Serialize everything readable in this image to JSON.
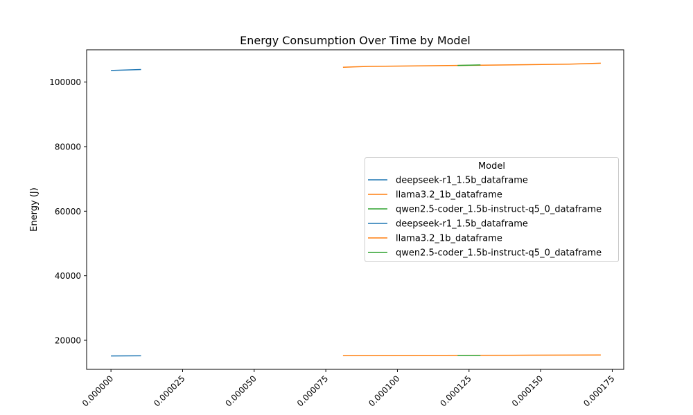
{
  "chart_data": {
    "type": "line",
    "title": "Energy Consumption Over Time by Model",
    "xlabel": "",
    "ylabel": "Energy (J)",
    "xlim": [
      -8.5e-06,
      0.000179
    ],
    "ylim": [
      11000,
      110000
    ],
    "x_ticks": [
      0.0,
      2.5e-05,
      5e-05,
      7.5e-05,
      0.0001,
      0.000125,
      0.00015,
      0.000175
    ],
    "x_tick_labels": [
      "0.000000",
      "0.000025",
      "0.000050",
      "0.000075",
      "0.000100",
      "0.000125",
      "0.000150",
      "0.000175"
    ],
    "y_ticks": [
      20000,
      40000,
      60000,
      80000,
      100000
    ],
    "y_tick_labels": [
      "20000",
      "40000",
      "60000",
      "80000",
      "100000"
    ],
    "grid": false,
    "legend": {
      "title": "Model",
      "position": "center-right"
    },
    "series": [
      {
        "name": "deepseek-r1_1.5b_dataframe",
        "color": "#1f77b4",
        "x": [
          0.0,
          1.05e-05
        ],
        "y": [
          103600,
          103900
        ]
      },
      {
        "name": "llama3.2_1b_dataframe",
        "color": "#ff7f0e",
        "x": [
          8.1e-05,
          9e-05,
          0.00011,
          0.00013,
          0.00016,
          0.000171
        ],
        "y": [
          104600,
          104850,
          105050,
          105250,
          105550,
          105850
        ]
      },
      {
        "name": "qwen2.5-coder_1.5b-instruct-q5_0_dataframe",
        "color": "#2ca02c",
        "x": [
          0.000121,
          0.000129
        ],
        "y": [
          105150,
          105300
        ]
      },
      {
        "name": "deepseek-r1_1.5b_dataframe",
        "color": "#1f77b4",
        "x": [
          0.0,
          1.05e-05
        ],
        "y": [
          15150,
          15200
        ]
      },
      {
        "name": "llama3.2_1b_dataframe",
        "color": "#ff7f0e",
        "x": [
          8.1e-05,
          0.00011,
          0.00014,
          0.000171
        ],
        "y": [
          15250,
          15320,
          15380,
          15450
        ]
      },
      {
        "name": "qwen2.5-coder_1.5b-instruct-q5_0_dataframe",
        "color": "#2ca02c",
        "x": [
          0.000121,
          0.000129
        ],
        "y": [
          15330,
          15345
        ]
      }
    ]
  }
}
